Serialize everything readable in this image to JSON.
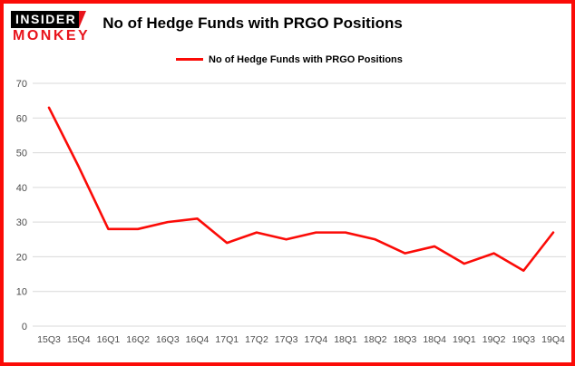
{
  "logo": {
    "line1": "INSIDER",
    "line2": "MONKEY"
  },
  "header": {
    "title": "No of Hedge Funds with PRGO Positions"
  },
  "legend": {
    "label": "No of Hedge Funds with PRGO Positions"
  },
  "colors": {
    "line": "#fb0b07",
    "border": "#fb0b07",
    "grid": "#d9d9d9",
    "tick_text": "#4d4d4d",
    "logo_red": "#e8141c",
    "logo_black": "#000000",
    "background": "#ffffff"
  },
  "chart_data": {
    "type": "line",
    "title": "No of Hedge Funds with PRGO Positions",
    "xlabel": "",
    "ylabel": "",
    "categories": [
      "15Q3",
      "15Q4",
      "16Q1",
      "16Q2",
      "16Q3",
      "16Q4",
      "17Q1",
      "17Q2",
      "17Q3",
      "17Q4",
      "18Q1",
      "18Q2",
      "18Q3",
      "18Q4",
      "19Q1",
      "19Q2",
      "19Q3",
      "19Q4"
    ],
    "series": [
      {
        "name": "No of Hedge Funds with PRGO Positions",
        "values": [
          63,
          46,
          28,
          28,
          30,
          31,
          24,
          27,
          25,
          27,
          27,
          25,
          21,
          23,
          18,
          21,
          16,
          27
        ]
      }
    ],
    "ylim": [
      0,
      70
    ],
    "yticks": [
      0,
      10,
      20,
      30,
      40,
      50,
      60,
      70
    ],
    "grid": true,
    "legend_position": "top-left"
  }
}
